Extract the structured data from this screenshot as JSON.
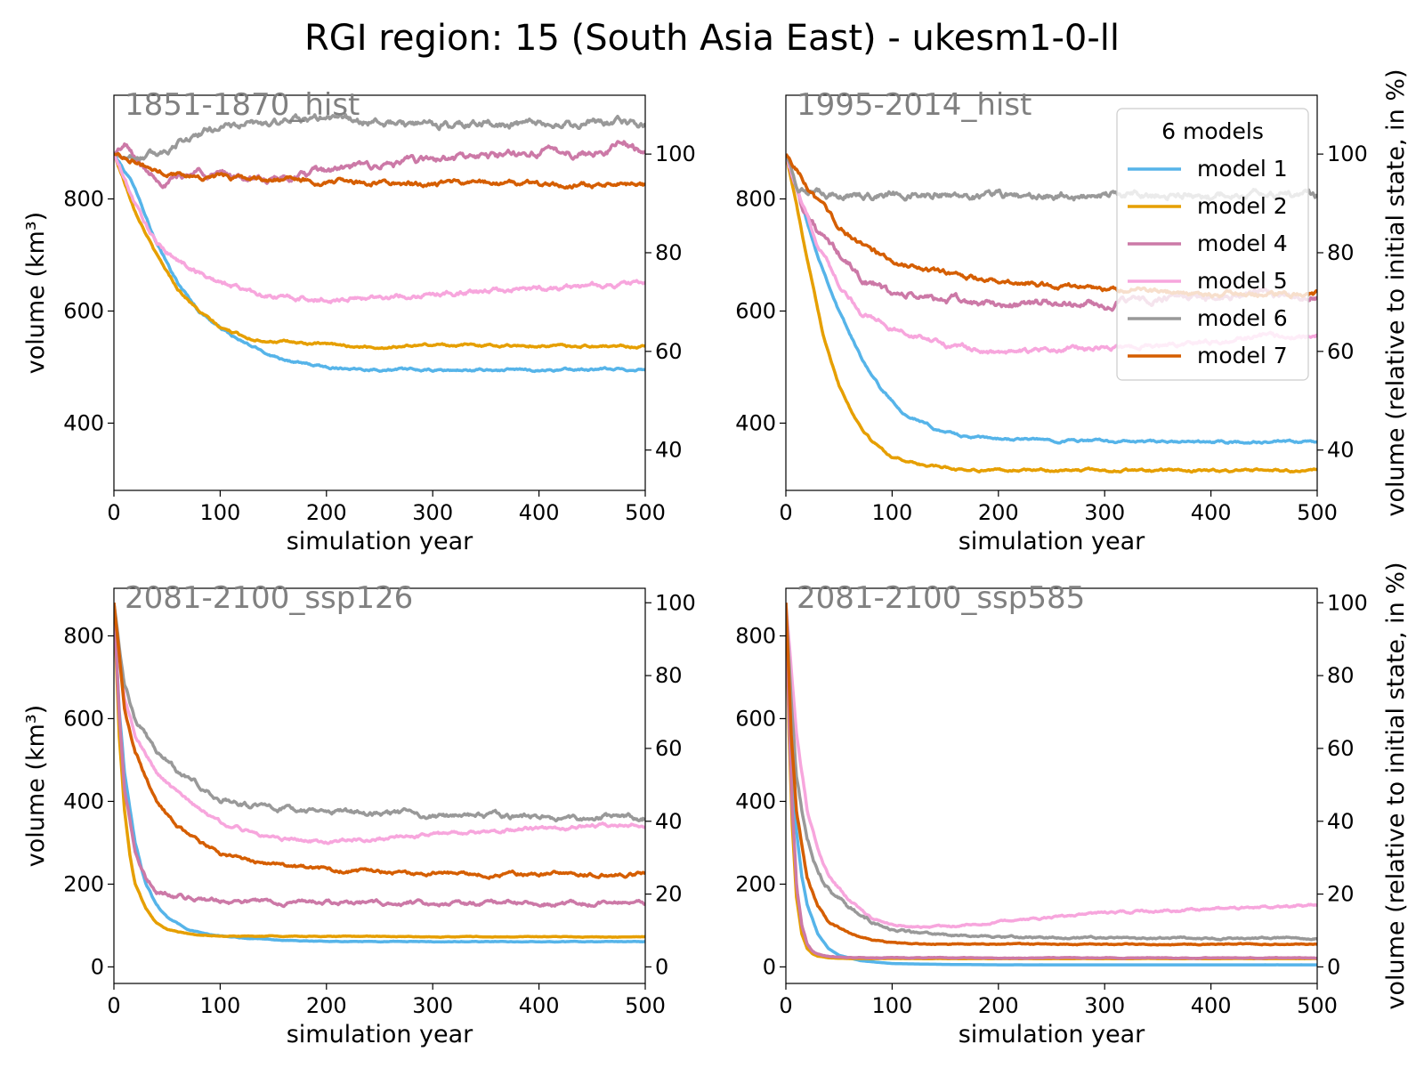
{
  "figure": {
    "title": "RGI region: 15 (South Asia East) - ukesm1-0-ll"
  },
  "legend": {
    "title": "6 models",
    "placement": "upper-right of panel 2"
  },
  "chart_data": [
    {
      "type": "line",
      "title": "1851-1870_hist",
      "xlabel": "simulation year",
      "ylabel": "volume (km³)",
      "ylabel_right": "",
      "xlim": [
        0,
        500
      ],
      "ylim": [
        280,
        985
      ],
      "xticks": [
        "0",
        "100",
        "200",
        "300",
        "400",
        "500"
      ],
      "yticks": [
        "400",
        "600",
        "800"
      ],
      "yticks_right": [
        "40",
        "60",
        "80",
        "100"
      ],
      "initial_volume": 880,
      "series": [
        {
          "name": "model 1",
          "color": "#56b4e9",
          "x": [
            0,
            20,
            40,
            60,
            80,
            100,
            120,
            150,
            180,
            200,
            250,
            300,
            400,
            500
          ],
          "y": [
            880,
            820,
            720,
            650,
            600,
            570,
            545,
            520,
            505,
            500,
            496,
            494,
            495,
            496
          ]
        },
        {
          "name": "model 2",
          "color": "#e69f00",
          "x": [
            0,
            20,
            40,
            60,
            80,
            100,
            130,
            160,
            200,
            250,
            300,
            400,
            500
          ],
          "y": [
            880,
            780,
            700,
            640,
            600,
            570,
            550,
            545,
            540,
            535,
            540,
            538,
            537
          ]
        },
        {
          "name": "model 4",
          "color": "#cc79a7",
          "x": [
            0,
            10,
            30,
            50,
            80,
            100,
            150,
            200,
            250,
            300,
            350,
            400,
            450,
            480,
            500
          ],
          "y": [
            880,
            895,
            850,
            830,
            850,
            845,
            830,
            850,
            860,
            870,
            875,
            885,
            880,
            900,
            885
          ]
        },
        {
          "name": "model 5",
          "color": "#f7a6dd",
          "x": [
            0,
            20,
            40,
            60,
            80,
            100,
            150,
            200,
            250,
            300,
            400,
            500
          ],
          "y": [
            880,
            790,
            720,
            690,
            670,
            650,
            625,
            620,
            625,
            630,
            640,
            650
          ]
        },
        {
          "name": "model 6",
          "color": "#999999",
          "x": [
            0,
            20,
            40,
            60,
            80,
            100,
            150,
            200,
            250,
            300,
            350,
            400,
            450,
            500
          ],
          "y": [
            880,
            875,
            880,
            900,
            915,
            930,
            935,
            945,
            935,
            930,
            935,
            930,
            935,
            935
          ]
        },
        {
          "name": "model 7",
          "color": "#d55e00",
          "x": [
            0,
            20,
            40,
            60,
            80,
            100,
            150,
            200,
            250,
            300,
            350,
            400,
            450,
            500
          ],
          "y": [
            880,
            870,
            850,
            845,
            840,
            840,
            835,
            830,
            830,
            825,
            830,
            825,
            825,
            825
          ]
        }
      ]
    },
    {
      "type": "line",
      "title": "1995-2014_hist",
      "xlabel": "simulation year",
      "ylabel": "",
      "ylabel_right": "volume (relative to initial state, in %)",
      "xlim": [
        0,
        500
      ],
      "ylim": [
        280,
        985
      ],
      "xticks": [
        "0",
        "100",
        "200",
        "300",
        "400",
        "500"
      ],
      "yticks": [
        "400",
        "600",
        "800"
      ],
      "yticks_right": [
        "40",
        "60",
        "80",
        "100"
      ],
      "initial_volume": 880,
      "series": [
        {
          "name": "model 1",
          "color": "#56b4e9",
          "x": [
            0,
            15,
            30,
            50,
            70,
            90,
            110,
            140,
            170,
            200,
            250,
            300,
            350,
            400,
            500
          ],
          "y": [
            880,
            790,
            700,
            600,
            520,
            460,
            420,
            390,
            375,
            372,
            370,
            368,
            366,
            366,
            366
          ]
        },
        {
          "name": "model 2",
          "color": "#e69f00",
          "x": [
            0,
            10,
            20,
            35,
            50,
            65,
            80,
            100,
            130,
            160,
            200,
            250,
            300,
            400,
            500
          ],
          "y": [
            880,
            790,
            690,
            560,
            470,
            410,
            370,
            340,
            325,
            318,
            316,
            316,
            316,
            315,
            315
          ]
        },
        {
          "name": "model 4",
          "color": "#cc79a7",
          "x": [
            0,
            15,
            30,
            50,
            70,
            100,
            150,
            200,
            250,
            300,
            350,
            400,
            450,
            500
          ],
          "y": [
            880,
            790,
            740,
            700,
            660,
            630,
            620,
            610,
            615,
            610,
            620,
            625,
            635,
            625
          ]
        },
        {
          "name": "model 5",
          "color": "#f7a6dd",
          "x": [
            0,
            15,
            30,
            50,
            70,
            100,
            150,
            200,
            250,
            300,
            350,
            400,
            450,
            500
          ],
          "y": [
            880,
            790,
            720,
            650,
            600,
            570,
            540,
            525,
            530,
            535,
            540,
            545,
            555,
            560
          ]
        },
        {
          "name": "model 6",
          "color": "#999999",
          "x": [
            0,
            10,
            20,
            40,
            60,
            100,
            150,
            200,
            250,
            300,
            350,
            400,
            450,
            500
          ],
          "y": [
            880,
            830,
            810,
            805,
            805,
            810,
            808,
            805,
            805,
            805,
            808,
            805,
            810,
            805
          ]
        },
        {
          "name": "model 7",
          "color": "#d55e00",
          "x": [
            0,
            15,
            30,
            50,
            70,
            100,
            130,
            160,
            200,
            250,
            300,
            350,
            400,
            450,
            500
          ],
          "y": [
            880,
            840,
            795,
            750,
            720,
            690,
            675,
            665,
            655,
            648,
            640,
            635,
            630,
            630,
            630
          ]
        }
      ]
    },
    {
      "type": "line",
      "title": "2081-2100_ssp126",
      "xlabel": "simulation year",
      "ylabel": "volume (km³)",
      "ylabel_right": "",
      "xlim": [
        0,
        500
      ],
      "ylim": [
        -40,
        915
      ],
      "xticks": [
        "0",
        "100",
        "200",
        "300",
        "400",
        "500"
      ],
      "yticks": [
        "0",
        "200",
        "400",
        "600",
        "800"
      ],
      "yticks_right": [
        "0",
        "20",
        "40",
        "60",
        "80",
        "100"
      ],
      "initial_volume": 880,
      "series": [
        {
          "name": "model 1",
          "color": "#56b4e9",
          "x": [
            0,
            5,
            10,
            20,
            30,
            40,
            50,
            70,
            90,
            120,
            150,
            200,
            300,
            400,
            500
          ],
          "y": [
            880,
            620,
            470,
            300,
            200,
            150,
            120,
            90,
            78,
            70,
            65,
            62,
            61,
            61,
            61
          ]
        },
        {
          "name": "model 2",
          "color": "#e69f00",
          "x": [
            0,
            5,
            10,
            15,
            20,
            30,
            40,
            50,
            70,
            90,
            120,
            200,
            300,
            400,
            500
          ],
          "y": [
            880,
            560,
            380,
            270,
            200,
            140,
            105,
            90,
            80,
            76,
            74,
            74,
            73,
            73,
            72
          ]
        },
        {
          "name": "model 4",
          "color": "#cc79a7",
          "x": [
            0,
            5,
            10,
            20,
            30,
            40,
            60,
            80,
            100,
            150,
            200,
            250,
            300,
            400,
            500
          ],
          "y": [
            880,
            600,
            430,
            280,
            210,
            185,
            170,
            165,
            160,
            158,
            155,
            155,
            155,
            155,
            155
          ]
        },
        {
          "name": "model 5",
          "color": "#f7a6dd",
          "x": [
            0,
            10,
            20,
            40,
            60,
            80,
            100,
            130,
            160,
            200,
            250,
            300,
            350,
            400,
            450,
            500
          ],
          "y": [
            880,
            650,
            560,
            470,
            420,
            380,
            350,
            325,
            310,
            305,
            310,
            320,
            325,
            335,
            340,
            345
          ]
        },
        {
          "name": "model 6",
          "color": "#999999",
          "x": [
            0,
            10,
            20,
            40,
            60,
            80,
            100,
            130,
            160,
            200,
            250,
            300,
            350,
            400,
            450,
            500
          ],
          "y": [
            880,
            680,
            600,
            520,
            470,
            440,
            410,
            390,
            380,
            375,
            370,
            365,
            365,
            362,
            362,
            360
          ]
        },
        {
          "name": "model 7",
          "color": "#d55e00",
          "x": [
            0,
            10,
            20,
            40,
            60,
            80,
            100,
            130,
            160,
            200,
            250,
            300,
            350,
            400,
            450,
            500
          ],
          "y": [
            880,
            620,
            520,
            400,
            340,
            300,
            275,
            255,
            245,
            235,
            230,
            228,
            225,
            225,
            225,
            225
          ]
        }
      ]
    },
    {
      "type": "line",
      "title": "2081-2100_ssp585",
      "xlabel": "simulation year",
      "ylabel": "",
      "ylabel_right": "volume (relative to initial state, in %)",
      "xlim": [
        0,
        500
      ],
      "ylim": [
        -40,
        915
      ],
      "xticks": [
        "0",
        "100",
        "200",
        "300",
        "400",
        "500"
      ],
      "yticks": [
        "0",
        "200",
        "400",
        "600",
        "800"
      ],
      "yticks_right": [
        "0",
        "20",
        "40",
        "60",
        "80",
        "100"
      ],
      "initial_volume": 880,
      "series": [
        {
          "name": "model 1",
          "color": "#56b4e9",
          "x": [
            0,
            3,
            6,
            10,
            15,
            20,
            30,
            40,
            50,
            70,
            100,
            150,
            200,
            300,
            400,
            500
          ],
          "y": [
            880,
            650,
            470,
            330,
            220,
            150,
            80,
            45,
            28,
            15,
            8,
            6,
            5,
            5,
            5,
            5
          ]
        },
        {
          "name": "model 2",
          "color": "#e69f00",
          "x": [
            0,
            3,
            6,
            10,
            15,
            20,
            25,
            30,
            40,
            60,
            100,
            200,
            300,
            400,
            500
          ],
          "y": [
            880,
            560,
            340,
            170,
            80,
            45,
            32,
            26,
            22,
            20,
            20,
            20,
            20,
            20,
            20
          ]
        },
        {
          "name": "model 4",
          "color": "#cc79a7",
          "x": [
            0,
            3,
            6,
            10,
            15,
            20,
            25,
            30,
            40,
            60,
            100,
            200,
            300,
            400,
            500
          ],
          "y": [
            880,
            600,
            380,
            200,
            100,
            55,
            38,
            30,
            25,
            22,
            22,
            22,
            22,
            22,
            22
          ]
        },
        {
          "name": "model 5",
          "color": "#f7a6dd",
          "x": [
            0,
            5,
            10,
            20,
            30,
            40,
            60,
            80,
            100,
            130,
            160,
            200,
            250,
            300,
            350,
            400,
            450,
            500
          ],
          "y": [
            880,
            720,
            560,
            380,
            280,
            220,
            160,
            120,
            100,
            95,
            100,
            110,
            120,
            130,
            135,
            140,
            145,
            148
          ]
        },
        {
          "name": "model 6",
          "color": "#999999",
          "x": [
            0,
            5,
            10,
            20,
            30,
            40,
            60,
            80,
            100,
            130,
            160,
            200,
            300,
            400,
            500
          ],
          "y": [
            880,
            640,
            460,
            300,
            230,
            190,
            140,
            110,
            90,
            80,
            75,
            72,
            70,
            70,
            70
          ]
        },
        {
          "name": "model 7",
          "color": "#d55e00",
          "x": [
            0,
            5,
            10,
            20,
            30,
            40,
            60,
            80,
            100,
            130,
            160,
            200,
            300,
            400,
            500
          ],
          "y": [
            880,
            560,
            380,
            220,
            150,
            110,
            80,
            65,
            58,
            55,
            55,
            55,
            55,
            55,
            55
          ]
        }
      ]
    }
  ]
}
